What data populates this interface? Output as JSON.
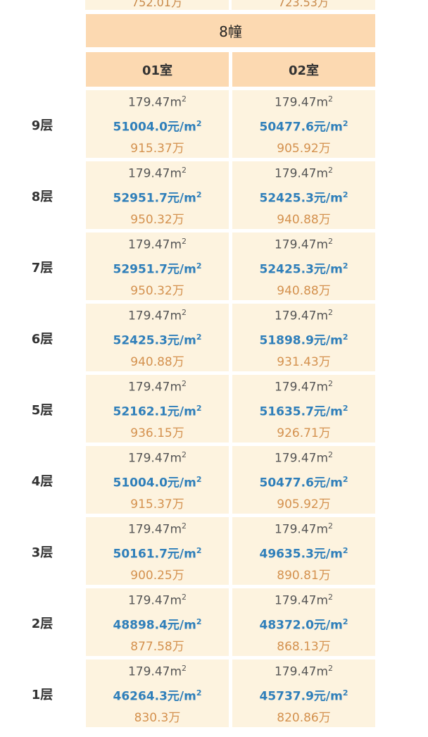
{
  "top_partial": [
    "752.01万",
    "723.53万"
  ],
  "building": "8幢",
  "units": [
    "01室",
    "02室"
  ],
  "area_unit": "m",
  "price_unit": "元/m",
  "unit_exponent": "2",
  "floors": [
    {
      "label": "9层",
      "cells": [
        {
          "area": "179.47",
          "price": "51004.0",
          "total": "915.37万"
        },
        {
          "area": "179.47",
          "price": "50477.6",
          "total": "905.92万"
        }
      ]
    },
    {
      "label": "8层",
      "cells": [
        {
          "area": "179.47",
          "price": "52951.7",
          "total": "950.32万"
        },
        {
          "area": "179.47",
          "price": "52425.3",
          "total": "940.88万"
        }
      ]
    },
    {
      "label": "7层",
      "cells": [
        {
          "area": "179.47",
          "price": "52951.7",
          "total": "950.32万"
        },
        {
          "area": "179.47",
          "price": "52425.3",
          "total": "940.88万"
        }
      ]
    },
    {
      "label": "6层",
      "cells": [
        {
          "area": "179.47",
          "price": "52425.3",
          "total": "940.88万"
        },
        {
          "area": "179.47",
          "price": "51898.9",
          "total": "931.43万"
        }
      ]
    },
    {
      "label": "5层",
      "cells": [
        {
          "area": "179.47",
          "price": "52162.1",
          "total": "936.15万"
        },
        {
          "area": "179.47",
          "price": "51635.7",
          "total": "926.71万"
        }
      ]
    },
    {
      "label": "4层",
      "cells": [
        {
          "area": "179.47",
          "price": "51004.0",
          "total": "915.37万"
        },
        {
          "area": "179.47",
          "price": "50477.6",
          "total": "905.92万"
        }
      ]
    },
    {
      "label": "3层",
      "cells": [
        {
          "area": "179.47",
          "price": "50161.7",
          "total": "900.25万"
        },
        {
          "area": "179.47",
          "price": "49635.3",
          "total": "890.81万"
        }
      ]
    },
    {
      "label": "2层",
      "cells": [
        {
          "area": "179.47",
          "price": "48898.4",
          "total": "877.58万"
        },
        {
          "area": "179.47",
          "price": "48372.0",
          "total": "868.13万"
        }
      ]
    },
    {
      "label": "1层",
      "cells": [
        {
          "area": "179.47",
          "price": "46264.3",
          "total": "830.3万"
        },
        {
          "area": "179.47",
          "price": "45737.9",
          "total": "820.86万"
        }
      ]
    }
  ]
}
